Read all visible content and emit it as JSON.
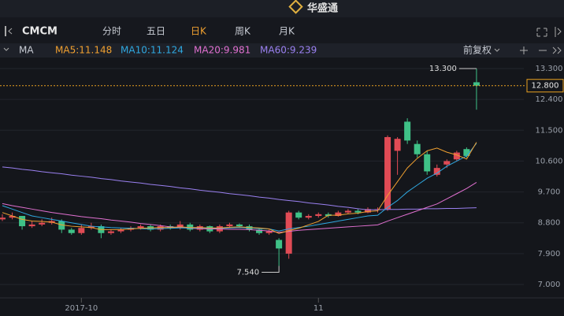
{
  "header": {
    "title": "华盛通"
  },
  "toolbar": {
    "symbol": "CMCM",
    "tabs": [
      "分时",
      "五日",
      "日K",
      "周K",
      "月K"
    ],
    "active_tab": 2
  },
  "indicator_bar": {
    "name": "MA",
    "items": [
      {
        "label": "MA5:11.148",
        "color": "#f0a030"
      },
      {
        "label": "MA10:11.124",
        "color": "#2fa8e0"
      },
      {
        "label": "MA20:9.981",
        "color": "#e070d0"
      },
      {
        "label": "MA60:9.239",
        "color": "#9a80f0"
      }
    ],
    "adjust": "前复权"
  },
  "chart_data": {
    "type": "candlestick",
    "up_color": "#e04b55",
    "down_color": "#3fc187",
    "categories": [
      null,
      null,
      null,
      null,
      null,
      null,
      null,
      null,
      "2017-10",
      null,
      null,
      null,
      null,
      null,
      null,
      null,
      null,
      null,
      null,
      null,
      null,
      null,
      null,
      null,
      null,
      null,
      null,
      null,
      null,
      null,
      null,
      null,
      "11",
      null,
      null,
      null,
      null,
      null,
      null,
      null,
      null,
      null,
      null,
      null,
      null,
      null,
      null,
      null,
      null
    ],
    "candles": [
      {
        "o": 8.9,
        "h": 9.05,
        "l": 8.85,
        "c": 8.95
      },
      {
        "o": 8.95,
        "h": 9.1,
        "l": 8.9,
        "c": 9.0
      },
      {
        "o": 9.0,
        "h": 9.0,
        "l": 8.6,
        "c": 8.7
      },
      {
        "o": 8.7,
        "h": 8.85,
        "l": 8.65,
        "c": 8.75
      },
      {
        "o": 8.75,
        "h": 8.9,
        "l": 8.7,
        "c": 8.8
      },
      {
        "o": 8.8,
        "h": 8.95,
        "l": 8.75,
        "c": 8.85
      },
      {
        "o": 8.85,
        "h": 8.9,
        "l": 8.5,
        "c": 8.6
      },
      {
        "o": 8.6,
        "h": 8.65,
        "l": 8.45,
        "c": 8.5
      },
      {
        "o": 8.5,
        "h": 8.75,
        "l": 8.45,
        "c": 8.65
      },
      {
        "o": 8.65,
        "h": 8.8,
        "l": 8.6,
        "c": 8.7
      },
      {
        "o": 8.7,
        "h": 8.75,
        "l": 8.35,
        "c": 8.5
      },
      {
        "o": 8.5,
        "h": 8.6,
        "l": 8.45,
        "c": 8.55
      },
      {
        "o": 8.55,
        "h": 8.65,
        "l": 8.5,
        "c": 8.6
      },
      {
        "o": 8.6,
        "h": 8.7,
        "l": 8.55,
        "c": 8.65
      },
      {
        "o": 8.65,
        "h": 8.75,
        "l": 8.6,
        "c": 8.7
      },
      {
        "o": 8.7,
        "h": 8.75,
        "l": 8.55,
        "c": 8.6
      },
      {
        "o": 8.6,
        "h": 8.75,
        "l": 8.55,
        "c": 8.7
      },
      {
        "o": 8.7,
        "h": 8.75,
        "l": 8.6,
        "c": 8.65
      },
      {
        "o": 8.65,
        "h": 8.85,
        "l": 8.6,
        "c": 8.75
      },
      {
        "o": 8.75,
        "h": 8.8,
        "l": 8.55,
        "c": 8.6
      },
      {
        "o": 8.6,
        "h": 8.75,
        "l": 8.55,
        "c": 8.7
      },
      {
        "o": 8.7,
        "h": 8.72,
        "l": 8.5,
        "c": 8.55
      },
      {
        "o": 8.55,
        "h": 8.75,
        "l": 8.5,
        "c": 8.7
      },
      {
        "o": 8.7,
        "h": 8.8,
        "l": 8.65,
        "c": 8.75
      },
      {
        "o": 8.75,
        "h": 8.78,
        "l": 8.65,
        "c": 8.7
      },
      {
        "o": 8.7,
        "h": 8.75,
        "l": 8.55,
        "c": 8.6
      },
      {
        "o": 8.6,
        "h": 8.65,
        "l": 8.45,
        "c": 8.5
      },
      {
        "o": 8.5,
        "h": 8.6,
        "l": 8.45,
        "c": 8.55
      },
      {
        "o": 8.3,
        "h": 8.35,
        "l": 7.54,
        "c": 8.05
      },
      {
        "o": 7.9,
        "h": 9.15,
        "l": 7.75,
        "c": 9.1
      },
      {
        "o": 9.1,
        "h": 9.15,
        "l": 8.9,
        "c": 8.95
      },
      {
        "o": 8.95,
        "h": 9.05,
        "l": 8.9,
        "c": 9.0
      },
      {
        "o": 9.0,
        "h": 9.1,
        "l": 8.95,
        "c": 9.05
      },
      {
        "o": 9.05,
        "h": 9.1,
        "l": 8.95,
        "c": 9.0
      },
      {
        "o": 9.0,
        "h": 9.15,
        "l": 8.98,
        "c": 9.1
      },
      {
        "o": 9.1,
        "h": 9.2,
        "l": 9.05,
        "c": 9.15
      },
      {
        "o": 9.15,
        "h": 9.2,
        "l": 9.05,
        "c": 9.1
      },
      {
        "o": 9.1,
        "h": 9.25,
        "l": 9.08,
        "c": 9.2
      },
      {
        "o": 9.2,
        "h": 9.25,
        "l": 9.1,
        "c": 9.2
      },
      {
        "o": 9.2,
        "h": 11.35,
        "l": 9.15,
        "c": 11.3
      },
      {
        "o": 10.9,
        "h": 11.3,
        "l": 10.2,
        "c": 11.25
      },
      {
        "o": 11.75,
        "h": 11.85,
        "l": 11.1,
        "c": 11.2
      },
      {
        "o": 11.1,
        "h": 11.2,
        "l": 10.7,
        "c": 10.8
      },
      {
        "o": 10.8,
        "h": 10.9,
        "l": 10.2,
        "c": 10.3
      },
      {
        "o": 10.2,
        "h": 10.5,
        "l": 10.15,
        "c": 10.4
      },
      {
        "o": 10.5,
        "h": 10.65,
        "l": 10.4,
        "c": 10.6
      },
      {
        "o": 10.65,
        "h": 10.9,
        "l": 10.6,
        "c": 10.85
      },
      {
        "o": 10.95,
        "h": 11.0,
        "l": 10.7,
        "c": 10.75
      },
      {
        "o": 12.9,
        "h": 13.3,
        "l": 12.1,
        "c": 12.8
      }
    ],
    "series": [
      {
        "color": "#9a80f0",
        "values": [
          10.43,
          10.4,
          10.36,
          10.33,
          10.29,
          10.26,
          10.23,
          10.19,
          10.16,
          10.13,
          10.09,
          10.06,
          10.02,
          9.99,
          9.96,
          9.92,
          9.89,
          9.86,
          9.82,
          9.79,
          9.75,
          9.72,
          9.69,
          9.65,
          9.62,
          9.59,
          9.55,
          9.52,
          9.48,
          9.45,
          9.42,
          9.38,
          9.35,
          9.32,
          9.28,
          9.25,
          9.21,
          9.18,
          9.18,
          9.19,
          9.19,
          9.2,
          9.2,
          9.21,
          9.21,
          9.22,
          9.22,
          9.23,
          9.24
        ]
      },
      {
        "color": "#e070d0",
        "values": [
          9.36,
          9.3,
          9.25,
          9.2,
          9.15,
          9.1,
          9.06,
          9.02,
          8.98,
          8.95,
          8.92,
          8.88,
          8.85,
          8.82,
          8.78,
          8.75,
          8.72,
          8.68,
          8.66,
          8.64,
          8.63,
          8.62,
          8.62,
          8.61,
          8.61,
          8.6,
          8.58,
          8.56,
          8.52,
          8.55,
          8.58,
          8.6,
          8.62,
          8.64,
          8.66,
          8.68,
          8.7,
          8.72,
          8.74,
          8.85,
          8.95,
          9.05,
          9.15,
          9.25,
          9.35,
          9.5,
          9.65,
          9.8,
          9.98
        ]
      },
      {
        "color": "#2fa8e0",
        "values": [
          9.3,
          9.2,
          9.1,
          9.0,
          8.95,
          8.9,
          8.85,
          8.8,
          8.75,
          8.7,
          8.68,
          8.66,
          8.65,
          8.64,
          8.63,
          8.62,
          8.63,
          8.64,
          8.65,
          8.65,
          8.65,
          8.64,
          8.64,
          8.65,
          8.66,
          8.65,
          8.63,
          8.62,
          8.56,
          8.62,
          8.66,
          8.7,
          8.75,
          8.8,
          8.85,
          8.9,
          8.95,
          9.0,
          9.02,
          9.25,
          9.45,
          9.7,
          9.9,
          10.1,
          10.25,
          10.45,
          10.6,
          10.75,
          11.12
        ]
      },
      {
        "color": "#f0a030",
        "values": [
          9.1,
          9.0,
          8.9,
          8.85,
          8.84,
          8.82,
          8.74,
          8.7,
          8.68,
          8.66,
          8.6,
          8.6,
          8.6,
          8.62,
          8.64,
          8.65,
          8.66,
          8.66,
          8.68,
          8.66,
          8.66,
          8.65,
          8.65,
          8.67,
          8.68,
          8.66,
          8.65,
          8.62,
          8.49,
          8.57,
          8.64,
          8.74,
          8.84,
          9.02,
          9.02,
          9.06,
          9.08,
          9.13,
          9.15,
          9.6,
          10.0,
          10.4,
          10.68,
          10.9,
          10.98,
          10.86,
          10.78,
          10.66,
          11.15
        ]
      }
    ],
    "ylim": [
      7.0,
      13.3
    ],
    "yticks": [
      {
        "value": 13.3,
        "label": "13.300"
      },
      {
        "value": 12.4,
        "label": "12.400"
      },
      {
        "value": 11.5,
        "label": "11.500"
      },
      {
        "value": 10.6,
        "label": "10.600"
      },
      {
        "value": 9.7,
        "label": "9.700"
      },
      {
        "value": 8.8,
        "label": "8.800"
      },
      {
        "value": 7.9,
        "label": "7.900"
      },
      {
        "value": 7.0,
        "label": "7.000"
      }
    ],
    "grid": true,
    "high_marker": {
      "value": 13.3,
      "label": "13.300"
    },
    "low_marker": {
      "value": 7.54,
      "label": "7.540"
    },
    "last_price": {
      "value": 12.8,
      "label": "12.800",
      "color": "#e8a020"
    }
  }
}
